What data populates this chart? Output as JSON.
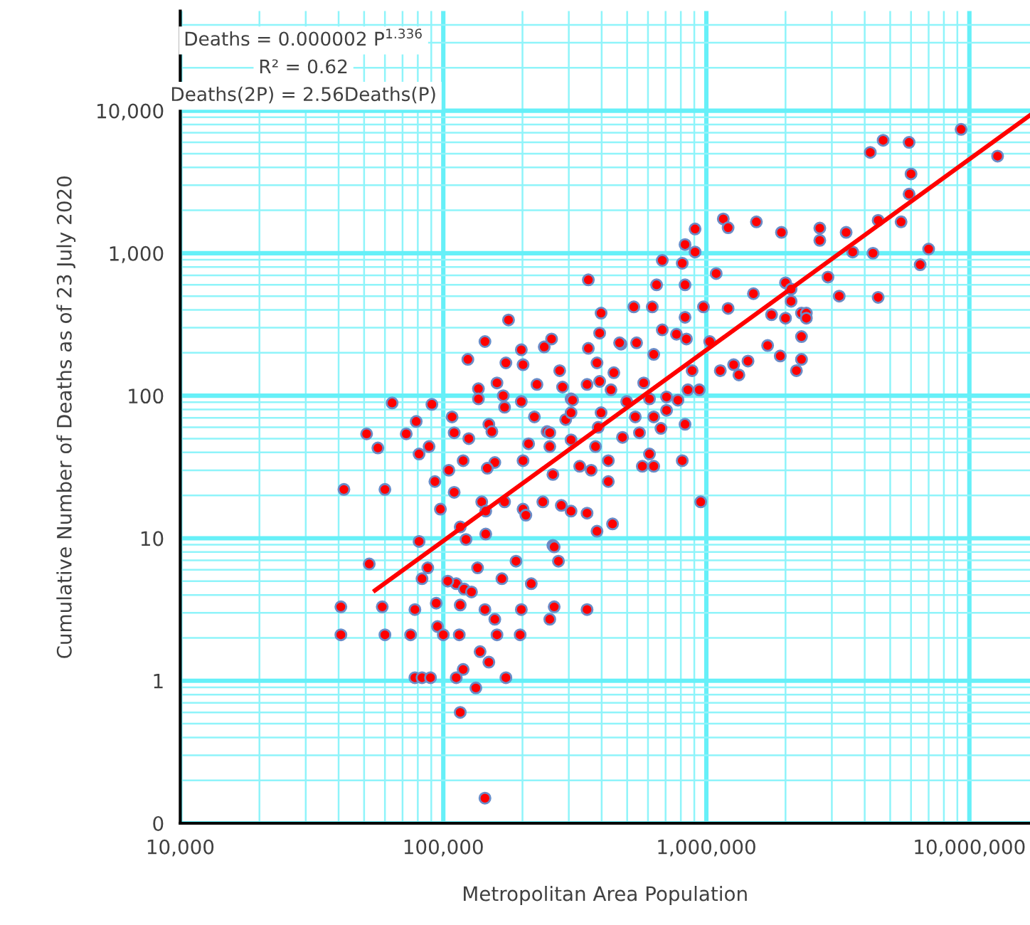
{
  "chart_data": {
    "type": "scatter",
    "xlabel": "Metropolitan Area Population",
    "ylabel": "Cumulative Number of Deaths as of 23 July 2020",
    "annotations": [
      "Deaths = 0.000002 P$^{1.336}$",
      "R² = 0.62",
      "Deaths(2P) = 2.56Deaths(P)"
    ],
    "log": "xy",
    "grid": true,
    "legend": false,
    "marker": "circle",
    "xlim": [
      10000,
      17000000
    ],
    "ylim": [
      0.1,
      50000
    ],
    "xticks": [
      {
        "value": 10000,
        "label": "10,000"
      },
      {
        "value": 20000,
        "label": null
      },
      {
        "value": 30000,
        "label": null
      },
      {
        "value": 40000,
        "label": null
      },
      {
        "value": 50000,
        "label": null
      },
      {
        "value": 60000,
        "label": null
      },
      {
        "value": 70000,
        "label": null
      },
      {
        "value": 80000,
        "label": null
      },
      {
        "value": 90000,
        "label": null
      },
      {
        "value": 100000,
        "label": "100,000"
      },
      {
        "value": 200000,
        "label": null
      },
      {
        "value": 300000,
        "label": null
      },
      {
        "value": 400000,
        "label": null
      },
      {
        "value": 500000,
        "label": null
      },
      {
        "value": 600000,
        "label": null
      },
      {
        "value": 700000,
        "label": null
      },
      {
        "value": 800000,
        "label": null
      },
      {
        "value": 900000,
        "label": null
      },
      {
        "value": 1000000,
        "label": "1,000,000"
      },
      {
        "value": 2000000,
        "label": null
      },
      {
        "value": 3000000,
        "label": null
      },
      {
        "value": 4000000,
        "label": null
      },
      {
        "value": 5000000,
        "label": null
      },
      {
        "value": 6000000,
        "label": null
      },
      {
        "value": 7000000,
        "label": null
      },
      {
        "value": 8000000,
        "label": null
      },
      {
        "value": 9000000,
        "label": null
      },
      {
        "value": 10000000,
        "label": "10,000,000"
      }
    ],
    "yticks": [
      {
        "value": 0.1,
        "label": "0"
      },
      {
        "value": 0.2,
        "label": null
      },
      {
        "value": 0.3,
        "label": null
      },
      {
        "value": 0.4,
        "label": null
      },
      {
        "value": 0.5,
        "label": null
      },
      {
        "value": 0.6,
        "label": null
      },
      {
        "value": 0.7,
        "label": null
      },
      {
        "value": 0.8,
        "label": null
      },
      {
        "value": 0.9,
        "label": null
      },
      1,
      {
        "value": 2,
        "label": null
      },
      {
        "value": 3,
        "label": null
      },
      {
        "value": 4,
        "label": null
      },
      {
        "value": 5,
        "label": null
      },
      {
        "value": 6,
        "label": null
      },
      {
        "value": 7,
        "label": null
      },
      {
        "value": 8,
        "label": null
      },
      {
        "value": 9,
        "label": null
      },
      10,
      {
        "value": 20,
        "label": null
      },
      {
        "value": 30,
        "label": null
      },
      {
        "value": 40,
        "label": null
      },
      {
        "value": 50,
        "label": null
      },
      {
        "value": 60,
        "label": null
      },
      {
        "value": 70,
        "label": null
      },
      {
        "value": 80,
        "label": null
      },
      {
        "value": 90,
        "label": null
      },
      100,
      {
        "value": 200,
        "label": null
      },
      {
        "value": 300,
        "label": null
      },
      {
        "value": 400,
        "label": null
      },
      {
        "value": 500,
        "label": null
      },
      {
        "value": 600,
        "label": null
      },
      {
        "value": 700,
        "label": null
      },
      {
        "value": 800,
        "label": null
      },
      {
        "value": 900,
        "label": null
      },
      {
        "value": 1000,
        "label": "1,000"
      },
      {
        "value": 2000,
        "label": null
      },
      {
        "value": 3000,
        "label": null
      },
      {
        "value": 4000,
        "label": null
      },
      {
        "value": 5000,
        "label": null
      },
      {
        "value": 6000,
        "label": null
      },
      {
        "value": 7000,
        "label": null
      },
      {
        "value": 8000,
        "label": null
      },
      {
        "value": 9000,
        "label": null
      },
      {
        "value": 10000,
        "label": "10,000"
      },
      {
        "value": 20000,
        "label": null
      },
      {
        "value": 30000,
        "label": null
      },
      {
        "value": 40000,
        "label": null
      }
    ],
    "series": [
      {
        "color": "#ff0000",
        "x": [
          9300000,
          12800000,
          4200000,
          4700000,
          5900000,
          6000000,
          5900000,
          4500000,
          5500000,
          1930000,
          2700000,
          2700000,
          3400000,
          3600000,
          4300000,
          7000000,
          6500000,
          2900000,
          2000000,
          2100000,
          3200000,
          4500000,
          2100000,
          1770000,
          2000000,
          2300000,
          2400000,
          2400000,
          2300000,
          1910000,
          2300000,
          2200000,
          1160000,
          1210000,
          1550000,
          906000,
          830000,
          906000,
          680000,
          810000,
          356000,
          647000,
          830000,
          1090000,
          1510000,
          398000,
          530000,
          623000,
          975000,
          1210000,
          830000,
          393000,
          680000,
          770000,
          840000,
          474000,
          543000,
          356000,
          242000,
          258000,
          631000,
          1710000,
          1030000,
          1270000,
          1440000,
          1130000,
          1330000,
          352000,
          578000,
          883000,
          851000,
          940000,
          393000,
          434000,
          284000,
          608000,
          706000,
          780000,
          498000,
          706000,
          631000,
          398000,
          537000,
          388000,
          672000,
          830000,
          480000,
          557000,
          379000,
          608000,
          810000,
          424000,
          571000,
          631000,
          330000,
          365000,
          254000,
          248000,
          292000,
          306000,
          306000,
          144000,
          124000,
          198000,
          173000,
          201000,
          277000,
          160000,
          136000,
          227000,
          136000,
          169000,
          198000,
          310000,
          90500,
          171000,
          222000,
          306000,
          78900,
          108000,
          149000,
          72300,
          110000,
          153000,
          254000,
          88300,
          125000,
          211000,
          80900,
          119000,
          157000,
          201000,
          105000,
          147000,
          261000,
          60000,
          92900,
          110000,
          140000,
          171000,
          201000,
          239000,
          97500,
          145000,
          206000,
          281000,
          306000,
          352000,
          116000,
          145000,
          122000,
          261000,
          80900,
          52300,
          87300,
          135000,
          189000,
          274000,
          83000,
          112000,
          167000,
          216000,
          384000,
          440000,
          424000,
          468000,
          384000,
          445000,
          58600,
          78000,
          94000,
          116000,
          144000,
          198000,
          264000,
          352000,
          254000,
          157000,
          95100,
          60000,
          75100,
          100000,
          115000,
          160000,
          196000,
          138000,
          149000,
          119000,
          78000,
          83000,
          89400,
          112000,
          173000,
          133000,
          116000,
          144000,
          264000,
          104000,
          120000,
          128000,
          41900,
          40800,
          40800,
          51100,
          56400,
          63900,
          177000,
          952000
        ],
        "values": [
          7400,
          4800,
          5100,
          6200,
          6000,
          3600,
          2600,
          1700,
          1660,
          1400,
          1500,
          1230,
          1400,
          1020,
          1000,
          1070,
          830,
          680,
          620,
          560,
          500,
          490,
          460,
          370,
          350,
          380,
          380,
          350,
          260,
          190,
          180,
          150,
          1740,
          1510,
          1660,
          1480,
          1150,
          1020,
          890,
          850,
          650,
          600,
          600,
          720,
          520,
          380,
          420,
          420,
          420,
          410,
          355,
          275,
          290,
          270,
          250,
          230,
          235,
          215,
          220,
          250,
          195,
          225,
          240,
          165,
          175,
          150,
          140,
          120,
          123,
          150,
          110,
          110,
          126,
          110,
          115,
          95,
          98,
          93,
          91,
          79,
          71,
          76,
          71,
          60,
          59,
          63,
          51,
          55,
          44,
          39,
          35,
          35,
          32,
          32,
          32,
          30,
          44,
          56,
          68,
          95,
          49,
          240,
          180,
          210,
          170,
          165,
          150,
          123,
          112,
          120,
          95,
          100,
          91,
          93,
          87,
          83,
          71,
          76,
          66,
          71,
          63,
          54,
          55,
          56,
          55,
          44,
          50,
          46,
          39,
          35,
          34,
          35,
          30,
          31,
          28,
          22,
          25,
          21,
          18,
          18,
          16,
          18,
          16,
          15.5,
          14.5,
          17,
          15.5,
          15,
          12,
          10.7,
          9.8,
          8.9,
          9.5,
          6.6,
          6.2,
          6.2,
          6.9,
          6.9,
          5.2,
          4.8,
          5.2,
          4.8,
          11.2,
          12.6,
          25,
          235,
          170,
          145,
          3.3,
          3.16,
          3.5,
          3.4,
          3.16,
          3.16,
          3.3,
          3.16,
          2.7,
          2.7,
          2.4,
          2.1,
          2.1,
          2.1,
          2.1,
          2.1,
          2.1,
          1.6,
          1.35,
          1.2,
          1.05,
          1.05,
          1.05,
          1.05,
          1.05,
          0.89,
          0.6,
          0.15,
          8.7,
          5.0,
          4.4,
          4.2,
          22,
          3.3,
          2.1,
          54,
          43,
          89,
          340,
          18
        ]
      },
      {
        "type": "line",
        "color": "#ff0000",
        "marker": "none",
        "line_style": "solid",
        "x": [
          55000,
          17000000
        ],
        "values": [
          4.3,
          9300
        ]
      }
    ]
  }
}
